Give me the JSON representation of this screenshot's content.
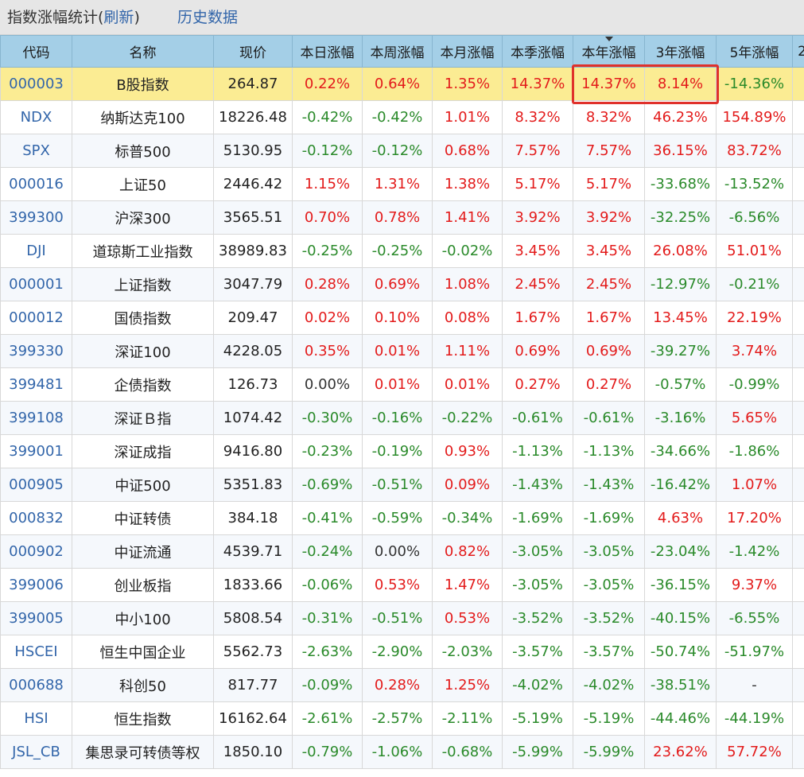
{
  "title": {
    "prefix": "指数涨幅统计(",
    "refresh": "刷新",
    "suffix": ")",
    "history": "历史数据"
  },
  "columns": [
    "代码",
    "名称",
    "现价",
    "本日涨幅",
    "本周涨幅",
    "本月涨幅",
    "本季涨幅",
    "本年涨幅",
    "3年涨幅",
    "5年涨幅",
    "2"
  ],
  "sorted_column": "本年涨幅",
  "colors": {
    "up": "#e31b1b",
    "down": "#2a8a2a",
    "link": "#3366aa",
    "header_bg": "#a4cfe7",
    "highlight_bg": "#fbec93",
    "focus_border": "#e0312b"
  },
  "rows": [
    {
      "code": "000003",
      "name": "B股指数",
      "price": "264.87",
      "day": "0.22%",
      "week": "0.64%",
      "month": "1.35%",
      "quarter": "14.37%",
      "year": "14.37%",
      "y3": "8.14%",
      "y5": "-14.36%"
    },
    {
      "code": "NDX",
      "name": "纳斯达克100",
      "price": "18226.48",
      "day": "-0.42%",
      "week": "-0.42%",
      "month": "1.01%",
      "quarter": "8.32%",
      "year": "8.32%",
      "y3": "46.23%",
      "y5": "154.89%"
    },
    {
      "code": "SPX",
      "name": "标普500",
      "price": "5130.95",
      "day": "-0.12%",
      "week": "-0.12%",
      "month": "0.68%",
      "quarter": "7.57%",
      "year": "7.57%",
      "y3": "36.15%",
      "y5": "83.72%"
    },
    {
      "code": "000016",
      "name": "上证50",
      "price": "2446.42",
      "day": "1.15%",
      "week": "1.31%",
      "month": "1.38%",
      "quarter": "5.17%",
      "year": "5.17%",
      "y3": "-33.68%",
      "y5": "-13.52%"
    },
    {
      "code": "399300",
      "name": "沪深300",
      "price": "3565.51",
      "day": "0.70%",
      "week": "0.78%",
      "month": "1.41%",
      "quarter": "3.92%",
      "year": "3.92%",
      "y3": "-32.25%",
      "y5": "-6.56%"
    },
    {
      "code": "DJI",
      "name": "道琼斯工业指数",
      "price": "38989.83",
      "day": "-0.25%",
      "week": "-0.25%",
      "month": "-0.02%",
      "quarter": "3.45%",
      "year": "3.45%",
      "y3": "26.08%",
      "y5": "51.01%"
    },
    {
      "code": "000001",
      "name": "上证指数",
      "price": "3047.79",
      "day": "0.28%",
      "week": "0.69%",
      "month": "1.08%",
      "quarter": "2.45%",
      "year": "2.45%",
      "y3": "-12.97%",
      "y5": "-0.21%"
    },
    {
      "code": "000012",
      "name": "国债指数",
      "price": "209.47",
      "day": "0.02%",
      "week": "0.10%",
      "month": "0.08%",
      "quarter": "1.67%",
      "year": "1.67%",
      "y3": "13.45%",
      "y5": "22.19%"
    },
    {
      "code": "399330",
      "name": "深证100",
      "price": "4228.05",
      "day": "0.35%",
      "week": "0.01%",
      "month": "1.11%",
      "quarter": "0.69%",
      "year": "0.69%",
      "y3": "-39.27%",
      "y5": "3.74%"
    },
    {
      "code": "399481",
      "name": "企债指数",
      "price": "126.73",
      "day": "0.00%",
      "week": "0.01%",
      "month": "0.01%",
      "quarter": "0.27%",
      "year": "0.27%",
      "y3": "-0.57%",
      "y5": "-0.99%"
    },
    {
      "code": "399108",
      "name": "深证Ｂ指",
      "price": "1074.42",
      "day": "-0.30%",
      "week": "-0.16%",
      "month": "-0.22%",
      "quarter": "-0.61%",
      "year": "-0.61%",
      "y3": "-3.16%",
      "y5": "5.65%"
    },
    {
      "code": "399001",
      "name": "深证成指",
      "price": "9416.80",
      "day": "-0.23%",
      "week": "-0.19%",
      "month": "0.93%",
      "quarter": "-1.13%",
      "year": "-1.13%",
      "y3": "-34.66%",
      "y5": "-1.86%"
    },
    {
      "code": "000905",
      "name": "中证500",
      "price": "5351.83",
      "day": "-0.69%",
      "week": "-0.51%",
      "month": "0.09%",
      "quarter": "-1.43%",
      "year": "-1.43%",
      "y3": "-16.42%",
      "y5": "1.07%"
    },
    {
      "code": "000832",
      "name": "中证转债",
      "price": "384.18",
      "day": "-0.41%",
      "week": "-0.59%",
      "month": "-0.34%",
      "quarter": "-1.69%",
      "year": "-1.69%",
      "y3": "4.63%",
      "y5": "17.20%"
    },
    {
      "code": "000902",
      "name": "中证流通",
      "price": "4539.71",
      "day": "-0.24%",
      "week": "0.00%",
      "month": "0.82%",
      "quarter": "-3.05%",
      "year": "-3.05%",
      "y3": "-23.04%",
      "y5": "-1.42%"
    },
    {
      "code": "399006",
      "name": "创业板指",
      "price": "1833.66",
      "day": "-0.06%",
      "week": "0.53%",
      "month": "1.47%",
      "quarter": "-3.05%",
      "year": "-3.05%",
      "y3": "-36.15%",
      "y5": "9.37%"
    },
    {
      "code": "399005",
      "name": "中小100",
      "price": "5808.54",
      "day": "-0.31%",
      "week": "-0.51%",
      "month": "0.53%",
      "quarter": "-3.52%",
      "year": "-3.52%",
      "y3": "-40.15%",
      "y5": "-6.55%"
    },
    {
      "code": "HSCEI",
      "name": "恒生中国企业",
      "price": "5562.73",
      "day": "-2.63%",
      "week": "-2.90%",
      "month": "-2.03%",
      "quarter": "-3.57%",
      "year": "-3.57%",
      "y3": "-50.74%",
      "y5": "-51.97%"
    },
    {
      "code": "000688",
      "name": "科创50",
      "price": "817.77",
      "day": "-0.09%",
      "week": "0.28%",
      "month": "1.25%",
      "quarter": "-4.02%",
      "year": "-4.02%",
      "y3": "-38.51%",
      "y5": "-"
    },
    {
      "code": "HSI",
      "name": "恒生指数",
      "price": "16162.64",
      "day": "-2.61%",
      "week": "-2.57%",
      "month": "-2.11%",
      "quarter": "-5.19%",
      "year": "-5.19%",
      "y3": "-44.46%",
      "y5": "-44.19%"
    },
    {
      "code": "JSL_CB",
      "name": "集思录可转债等权",
      "price": "1850.10",
      "day": "-0.79%",
      "week": "-1.06%",
      "month": "-0.68%",
      "quarter": "-5.99%",
      "year": "-5.99%",
      "y3": "23.62%",
      "y5": "57.72%"
    }
  ]
}
